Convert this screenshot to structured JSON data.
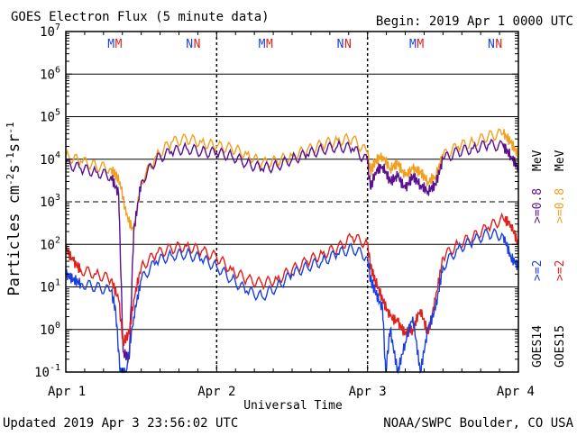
{
  "header": {
    "title": "GOES Electron Flux (5 minute data)",
    "begin": "Begin: 2019 Apr 1 0000 UTC"
  },
  "footer": {
    "updated": "Updated 2019 Apr  3 23:56:02 UTC",
    "credit": "NOAA/SWPC Boulder, CO USA"
  },
  "colors": {
    "goes14_high": "#1a3fe0",
    "goes15_high": "#e0201a",
    "goes14_low": "#5a1090",
    "goes15_low": "#f0a020"
  },
  "chart_data": {
    "type": "line",
    "title": "GOES Electron Flux (5 minute data)",
    "xlabel": "Universal Time",
    "ylabel": "Particles cm-2s-1sr-1",
    "yscale": "log",
    "ylim": [
      0.1,
      10000000
    ],
    "xlim": [
      0,
      3
    ],
    "x_tick_labels": [
      "Apr 1",
      "Apr 2",
      "Apr 3",
      "Apr 4"
    ],
    "y_tick_labels": [
      {
        "base": "10",
        "exp": "-1",
        "v": 0.1
      },
      {
        "base": "10",
        "exp": "0",
        "v": 1
      },
      {
        "base": "10",
        "exp": "1",
        "v": 10
      },
      {
        "base": "10",
        "exp": "2",
        "v": 100
      },
      {
        "base": "10",
        "exp": "3",
        "v": 1000
      },
      {
        "base": "10",
        "exp": "4",
        "v": 10000
      },
      {
        "base": "10",
        "exp": "5",
        "v": 100000
      },
      {
        "base": "10",
        "exp": "6",
        "v": 1000000
      },
      {
        "base": "10",
        "exp": "7",
        "v": 10000000
      }
    ],
    "dashed_threshold": 1000,
    "grid": true,
    "legend_placement": "right-vertical",
    "legend": [
      {
        "sat": "GOES14",
        "energy": ">=2",
        "color": "#1a3fe0"
      },
      {
        "sat": "GOES15",
        "energy": ">=2",
        "color": "#e0201a"
      },
      {
        "sat": "GOES14",
        "energy": ">=0.8",
        "color": "#5a1090"
      },
      {
        "sat": "GOES15",
        "energy": ">=0.8",
        "color": "#f0a020"
      }
    ],
    "unit": "MeV",
    "markers": [
      {
        "label": "M",
        "x": 0.3,
        "color": "#1a3fe0"
      },
      {
        "label": "M",
        "x": 0.35,
        "color": "#e0201a"
      },
      {
        "label": "N",
        "x": 0.82,
        "color": "#1a3fe0"
      },
      {
        "label": "N",
        "x": 0.87,
        "color": "#e0201a"
      },
      {
        "label": "M",
        "x": 1.3,
        "color": "#1a3fe0"
      },
      {
        "label": "M",
        "x": 1.35,
        "color": "#e0201a"
      },
      {
        "label": "N",
        "x": 1.82,
        "color": "#1a3fe0"
      },
      {
        "label": "N",
        "x": 1.87,
        "color": "#e0201a"
      },
      {
        "label": "M",
        "x": 2.3,
        "color": "#1a3fe0"
      },
      {
        "label": "M",
        "x": 2.35,
        "color": "#e0201a"
      },
      {
        "label": "N",
        "x": 2.82,
        "color": "#1a3fe0"
      },
      {
        "label": "N",
        "x": 2.87,
        "color": "#e0201a"
      }
    ],
    "series": [
      {
        "legend": "GOES15 >=0.8 MeV",
        "color": "#f0a020",
        "x": [
          0,
          0.1,
          0.2,
          0.3,
          0.36,
          0.4,
          0.45,
          0.5,
          0.6,
          0.7,
          0.8,
          0.9,
          1.0,
          1.1,
          1.2,
          1.3,
          1.4,
          1.5,
          1.6,
          1.7,
          1.8,
          1.9,
          2.0,
          2.02,
          2.05,
          2.1,
          2.15,
          2.2,
          2.25,
          2.3,
          2.35,
          2.4,
          2.45,
          2.5,
          2.6,
          2.7,
          2.8,
          2.9,
          2.95,
          3.0
        ],
        "y": [
          12000,
          9000,
          7000,
          6000,
          3000,
          500,
          200,
          3000,
          12000,
          25000,
          30000,
          25000,
          20000,
          18000,
          13000,
          8000,
          9000,
          12000,
          16000,
          22000,
          28000,
          30000,
          14000,
          5000,
          9000,
          12000,
          6000,
          8000,
          4000,
          6000,
          5000,
          3000,
          4000,
          12000,
          20000,
          25000,
          35000,
          40000,
          25000,
          12000
        ]
      },
      {
        "legend": "GOES14 >=0.8 MeV",
        "color": "#5a1090",
        "x": [
          0,
          0.1,
          0.2,
          0.3,
          0.35,
          0.38,
          0.42,
          0.45,
          0.5,
          0.6,
          0.7,
          0.8,
          0.9,
          1.0,
          1.1,
          1.2,
          1.3,
          1.4,
          1.5,
          1.6,
          1.7,
          1.8,
          1.9,
          2.0,
          2.02,
          2.05,
          2.1,
          2.15,
          2.2,
          2.25,
          2.3,
          2.35,
          2.4,
          2.45,
          2.5,
          2.6,
          2.7,
          2.8,
          2.9,
          2.95,
          3.0
        ],
        "y": [
          8000,
          6000,
          5000,
          4000,
          1500,
          0.3,
          0.2,
          200,
          3000,
          10000,
          15000,
          18000,
          15000,
          14000,
          12000,
          8000,
          6000,
          7000,
          10000,
          13000,
          17000,
          20000,
          18000,
          9000,
          2000,
          5000,
          7000,
          3000,
          4000,
          2000,
          4000,
          2500,
          1800,
          2500,
          10000,
          15000,
          18000,
          22000,
          20000,
          12000,
          6000
        ]
      },
      {
        "legend": "GOES15 >=2 MeV",
        "color": "#e0201a",
        "x": [
          0,
          0.05,
          0.1,
          0.2,
          0.3,
          0.35,
          0.38,
          0.42,
          0.45,
          0.5,
          0.6,
          0.7,
          0.8,
          0.9,
          1.0,
          1.1,
          1.2,
          1.3,
          1.4,
          1.5,
          1.6,
          1.7,
          1.8,
          1.9,
          2.0,
          2.02,
          2.05,
          2.1,
          2.15,
          2.2,
          2.25,
          2.3,
          2.35,
          2.4,
          2.45,
          2.5,
          2.6,
          2.7,
          2.8,
          2.9,
          2.95,
          3.0
        ],
        "y": [
          80,
          40,
          25,
          20,
          15,
          5,
          0.5,
          0.8,
          5,
          30,
          60,
          80,
          90,
          70,
          50,
          25,
          15,
          12,
          15,
          25,
          40,
          60,
          80,
          150,
          100,
          30,
          15,
          5,
          2,
          1.5,
          0.8,
          1,
          3,
          0.8,
          5,
          50,
          100,
          150,
          250,
          400,
          300,
          100
        ]
      },
      {
        "legend": "GOES14 >=2 MeV",
        "color": "#1a3fe0",
        "x": [
          0,
          0.05,
          0.1,
          0.2,
          0.3,
          0.33,
          0.36,
          0.4,
          0.45,
          0.5,
          0.6,
          0.7,
          0.8,
          0.9,
          1.0,
          1.1,
          1.2,
          1.3,
          1.4,
          1.5,
          1.6,
          1.7,
          1.8,
          1.9,
          2.0,
          2.02,
          2.05,
          2.1,
          2.12,
          2.15,
          2.2,
          2.25,
          2.3,
          2.35,
          2.4,
          2.45,
          2.5,
          2.6,
          2.7,
          2.8,
          2.9,
          2.95,
          3.0
        ],
        "y": [
          20,
          15,
          12,
          10,
          8,
          3,
          0.1,
          0.1,
          2,
          15,
          40,
          55,
          60,
          45,
          30,
          15,
          8,
          6,
          10,
          20,
          30,
          40,
          60,
          80,
          50,
          15,
          8,
          3,
          0.1,
          1,
          0.1,
          0.5,
          2,
          0.1,
          1,
          3,
          30,
          80,
          120,
          180,
          160,
          50,
          30
        ]
      }
    ]
  }
}
